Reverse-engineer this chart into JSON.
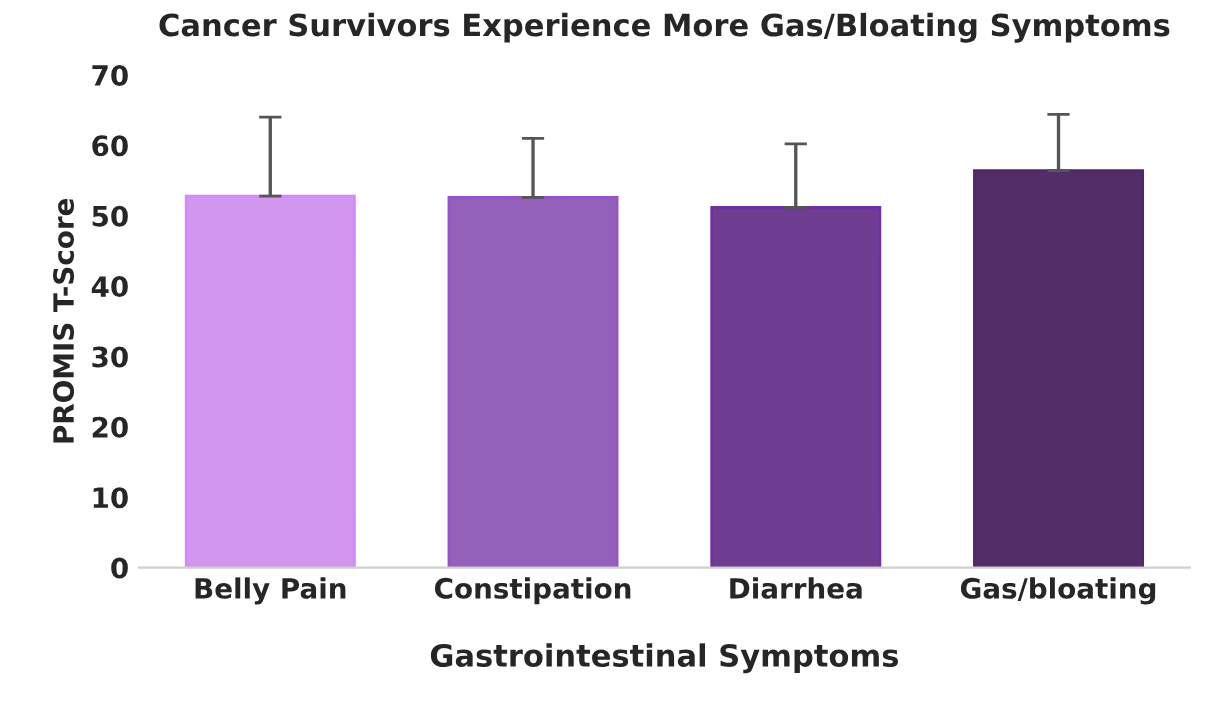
{
  "chart_data": {
    "type": "bar",
    "title": "Cancer Survivors Experience More Gas/Bloating Symptoms",
    "xlabel": "Gastrointestinal Symptoms",
    "ylabel": "PROMIS T-Score",
    "categories": [
      "Belly Pain",
      "Constipation",
      "Diarrhea",
      "Gas/bloating"
    ],
    "values": [
      52.8,
      52.6,
      51.2,
      56.4
    ],
    "colors": [
      "#d687fc",
      "#9552c9",
      "#7130a0",
      "#532472"
    ],
    "errors": [
      [
        52.8,
        64.0
      ],
      [
        52.6,
        61.0
      ],
      [
        51.2,
        60.2
      ],
      [
        56.4,
        64.4
      ]
    ],
    "ylim": [
      0,
      70
    ],
    "yticks": [
      0,
      10,
      20,
      30,
      40,
      50,
      60,
      70
    ],
    "grid": false
  }
}
